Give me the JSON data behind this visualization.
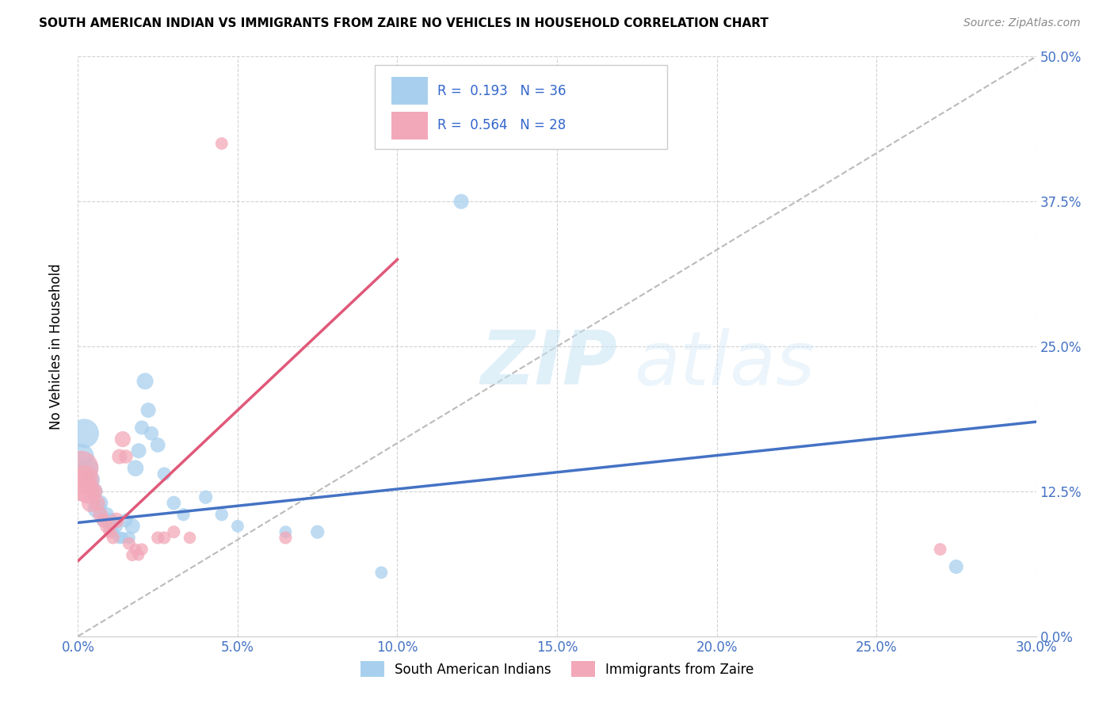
{
  "title": "SOUTH AMERICAN INDIAN VS IMMIGRANTS FROM ZAIRE NO VEHICLES IN HOUSEHOLD CORRELATION CHART",
  "source": "Source: ZipAtlas.com",
  "ylabel_label": "No Vehicles in Household",
  "xlim": [
    0.0,
    0.3
  ],
  "ylim": [
    0.0,
    0.5
  ],
  "legend_label1": "South American Indians",
  "legend_label2": "Immigrants from Zaire",
  "R1": "0.193",
  "N1": "36",
  "R2": "0.564",
  "N2": "28",
  "color_blue": "#A8D0EE",
  "color_pink": "#F2A8B8",
  "line_blue": "#4472C4",
  "line_pink": "#E05878",
  "diag_color": "#BBBBBB",
  "watermark_zip": "ZIP",
  "watermark_atlas": "atlas",
  "blue_points": [
    [
      0.001,
      0.155
    ],
    [
      0.002,
      0.175
    ],
    [
      0.003,
      0.145
    ],
    [
      0.004,
      0.135
    ],
    [
      0.005,
      0.125
    ],
    [
      0.006,
      0.11
    ],
    [
      0.007,
      0.115
    ],
    [
      0.008,
      0.1
    ],
    [
      0.009,
      0.105
    ],
    [
      0.01,
      0.1
    ],
    [
      0.01,
      0.095
    ],
    [
      0.011,
      0.09
    ],
    [
      0.012,
      0.095
    ],
    [
      0.013,
      0.085
    ],
    [
      0.014,
      0.085
    ],
    [
      0.015,
      0.1
    ],
    [
      0.016,
      0.085
    ],
    [
      0.017,
      0.095
    ],
    [
      0.018,
      0.145
    ],
    [
      0.019,
      0.16
    ],
    [
      0.02,
      0.18
    ],
    [
      0.021,
      0.22
    ],
    [
      0.022,
      0.195
    ],
    [
      0.023,
      0.175
    ],
    [
      0.025,
      0.165
    ],
    [
      0.027,
      0.14
    ],
    [
      0.03,
      0.115
    ],
    [
      0.033,
      0.105
    ],
    [
      0.04,
      0.12
    ],
    [
      0.045,
      0.105
    ],
    [
      0.05,
      0.095
    ],
    [
      0.065,
      0.09
    ],
    [
      0.075,
      0.09
    ],
    [
      0.095,
      0.055
    ],
    [
      0.12,
      0.375
    ],
    [
      0.275,
      0.06
    ]
  ],
  "pink_points": [
    [
      0.001,
      0.145
    ],
    [
      0.001,
      0.13
    ],
    [
      0.002,
      0.135
    ],
    [
      0.003,
      0.125
    ],
    [
      0.004,
      0.115
    ],
    [
      0.005,
      0.125
    ],
    [
      0.006,
      0.115
    ],
    [
      0.007,
      0.105
    ],
    [
      0.008,
      0.1
    ],
    [
      0.009,
      0.095
    ],
    [
      0.01,
      0.09
    ],
    [
      0.011,
      0.085
    ],
    [
      0.012,
      0.1
    ],
    [
      0.013,
      0.155
    ],
    [
      0.014,
      0.17
    ],
    [
      0.015,
      0.155
    ],
    [
      0.016,
      0.08
    ],
    [
      0.017,
      0.07
    ],
    [
      0.018,
      0.075
    ],
    [
      0.019,
      0.07
    ],
    [
      0.02,
      0.075
    ],
    [
      0.025,
      0.085
    ],
    [
      0.027,
      0.085
    ],
    [
      0.03,
      0.09
    ],
    [
      0.035,
      0.085
    ],
    [
      0.045,
      0.425
    ],
    [
      0.065,
      0.085
    ],
    [
      0.27,
      0.075
    ]
  ],
  "blue_sizes": [
    550,
    700,
    380,
    280,
    250,
    300,
    200,
    160,
    180,
    200,
    160,
    130,
    150,
    130,
    120,
    160,
    130,
    200,
    220,
    190,
    170,
    230,
    190,
    170,
    185,
    155,
    165,
    140,
    155,
    140,
    130,
    130,
    155,
    130,
    190,
    170
  ],
  "pink_sizes": [
    1000,
    800,
    700,
    500,
    280,
    240,
    210,
    185,
    165,
    155,
    145,
    135,
    200,
    190,
    210,
    160,
    135,
    125,
    115,
    110,
    125,
    135,
    135,
    135,
    125,
    130,
    135,
    130
  ]
}
